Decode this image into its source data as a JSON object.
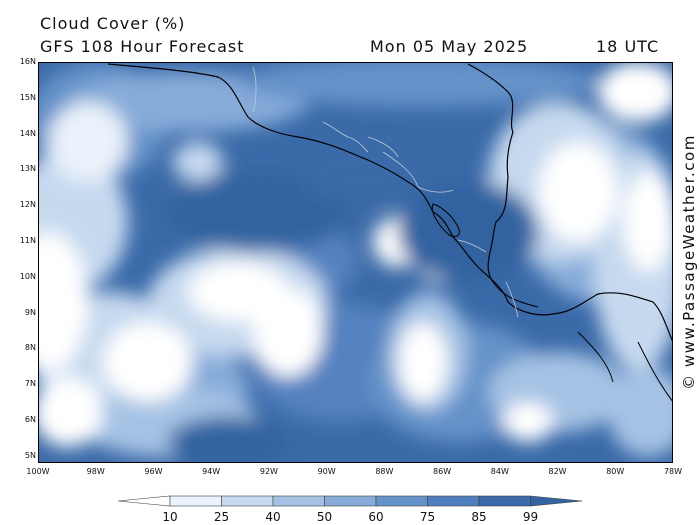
{
  "header": {
    "title": "Cloud Cover (%)",
    "subtitle": "GFS 108 Hour Forecast",
    "date": "Mon 05 May 2025",
    "time": "18 UTC"
  },
  "credit": "© www.PassageWeather.com",
  "map": {
    "lat_labels": [
      "16N",
      "15N",
      "14N",
      "13N",
      "12N",
      "11N",
      "10N",
      "9N",
      "8N",
      "7N",
      "6N",
      "5N"
    ],
    "lon_labels": [
      "100W",
      "98W",
      "96W",
      "94W",
      "92W",
      "90W",
      "88W",
      "86W",
      "84W",
      "82W",
      "80W",
      "78W"
    ],
    "lon_range": [
      -100,
      -78
    ],
    "lat_range": [
      4.8,
      16
    ],
    "colors": {
      "sea_cloud_dark": "#3a6aa8",
      "coastline": "#000000",
      "border": "#bfc9d6"
    }
  },
  "legend": {
    "labels": [
      "10",
      "25",
      "40",
      "50",
      "60",
      "75",
      "85",
      "99"
    ],
    "colors": [
      "#ffffff",
      "#eaf2fb",
      "#c6d9ef",
      "#a5c2e4",
      "#87acd9",
      "#6592c9",
      "#4f7fbd",
      "#3a6aa8",
      "#3363a0"
    ]
  }
}
